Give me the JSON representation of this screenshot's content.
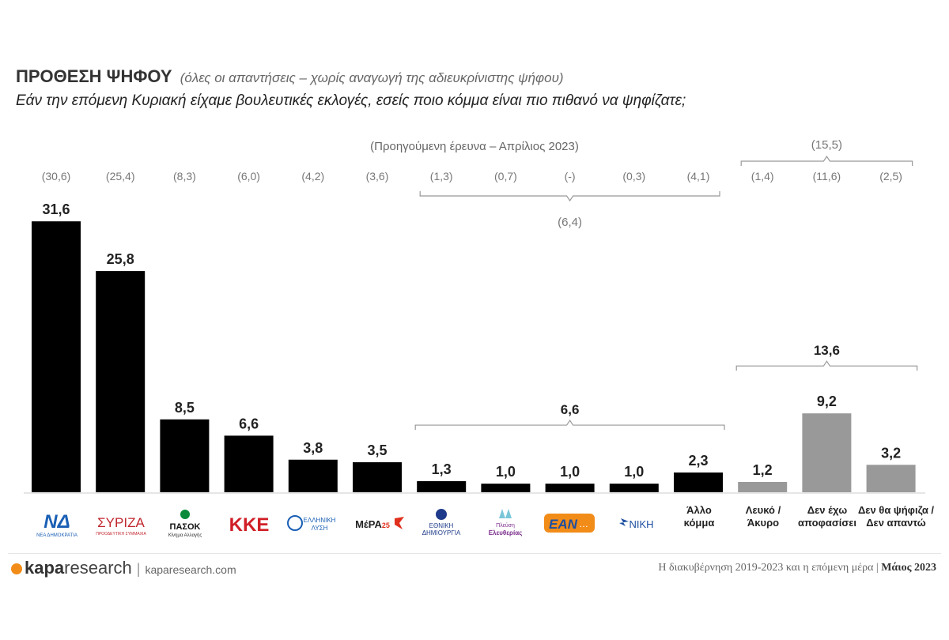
{
  "header": {
    "title": "ΠΡΟΘΕΣΗ ΨΗΦΟΥ",
    "subtitle": "(όλες οι απαντήσεις – χωρίς αναγωγή της αδιευκρίνιστης ψήφου)",
    "question": "Εάν την επόμενη Κυριακή είχαμε βουλευτικές εκλογές, εσείς ποιο κόμμα είναι πιο πιθανό να ψηφίζατε;"
  },
  "chart_data": {
    "type": "bar",
    "previous_survey_label": "(Προηγούμενη έρευνα – Απρίλιος 2023)",
    "categories": [
      "Νέα Δημοκρατία",
      "ΣΥΡΙΖΑ",
      "ΠΑΣΟΚ",
      "ΚΚΕ",
      "Ελληνική Λύση",
      "ΜέΡΑ25",
      "Εθνική Δημιουργία",
      "Πλεύση Ελευθερίας",
      "ΕΑΝ",
      "ΝΙΚΗ",
      "Άλλο κόμμα",
      "Λευκό / Άκυρο",
      "Δεν έχω αποφασίσει",
      "Δεν θα ψήφιζα / Δεν απαντώ"
    ],
    "values": [
      31.6,
      25.8,
      8.5,
      6.6,
      3.8,
      3.5,
      1.3,
      1.0,
      1.0,
      1.0,
      2.3,
      1.2,
      9.2,
      3.2
    ],
    "value_labels": [
      "31,6",
      "25,8",
      "8,5",
      "6,6",
      "3,8",
      "3,5",
      "1,3",
      "1,0",
      "1,0",
      "1,0",
      "2,3",
      "1,2",
      "9,2",
      "3,2"
    ],
    "previous_labels": [
      "(30,6)",
      "(25,4)",
      "(8,3)",
      "(6,0)",
      "(4,2)",
      "(3,6)",
      "(1,3)",
      "(0,7)",
      "(-)",
      "(0,3)",
      "(4,1)",
      "(1,4)",
      "(11,6)",
      "(2,5)"
    ],
    "bar_colors": [
      "#000000",
      "#000000",
      "#000000",
      "#000000",
      "#000000",
      "#000000",
      "#000000",
      "#000000",
      "#000000",
      "#000000",
      "#000000",
      "#999999",
      "#999999",
      "#999999"
    ],
    "groups": [
      {
        "from": 6,
        "to": 10,
        "total_label": "6,6",
        "previous_total_label": "(6,4)"
      },
      {
        "from": 11,
        "to": 13,
        "total_label": "13,6",
        "previous_total_label": "(15,5)"
      }
    ],
    "ylim": [
      0,
      34
    ],
    "grid": false
  },
  "logos": {
    "nd": {
      "mark": "ΝΔ",
      "caption": "ΝΕΑ ΔΗΜΟΚΡΑΤΙΑ",
      "color": "#1a5fb4"
    },
    "syriza": {
      "mark": "ΣΥΡΙΖΑ",
      "caption": "ΠΡΟΟΔΕΥΤΙΚΗ ΣΥΜΜΑΧΙΑ",
      "color": "#c0262d"
    },
    "pasok": {
      "mark": "ΠΑΣΟΚ",
      "caption": "Κίνημα Αλλαγής",
      "color": "#0a8a3a"
    },
    "kke": {
      "mark": "ΚΚΕ",
      "color": "#d01f26"
    },
    "elliniki": {
      "mark": "ΕΛΛΗΝΙΚΗ",
      "mark2": "ΛΥΣΗ",
      "color": "#1a5fb4"
    },
    "mera25": {
      "mark": "ΜέΡΑ",
      "num": "25",
      "color": "#e0301e"
    },
    "ethniki": {
      "mark": "ΕΘΝΙΚΗ",
      "mark2": "ΔΗΜΙΟΥΡΓΙΑ",
      "color": "#1e3a8a"
    },
    "plefsi": {
      "mark": "Πλεύση",
      "mark2": "Ελευθερίας",
      "color": "#7a2c8c"
    },
    "ean": {
      "mark": "EAN",
      "color": "#f28c18"
    },
    "niki": {
      "mark": "ΝΙΚΗ",
      "color": "#1e4fa0"
    },
    "allo": {
      "line1": "Άλλο",
      "line2": "κόμμα"
    },
    "lefko": {
      "line1": "Λευκό /",
      "line2": "Άκυρο"
    },
    "den_exo": {
      "line1": "Δεν έχω",
      "line2": "αποφασίσει"
    },
    "den_tha": {
      "line1": "Δεν θα ψήφιζα /",
      "line2": "Δεν απαντώ"
    }
  },
  "footer": {
    "brand_bold": "kapa",
    "brand_rest": "research",
    "site": "kaparesearch.com",
    "report": "Η διακυβέρνηση 2019-2023 και η επόμενη μέρα",
    "date": "Μάιος 2023"
  }
}
